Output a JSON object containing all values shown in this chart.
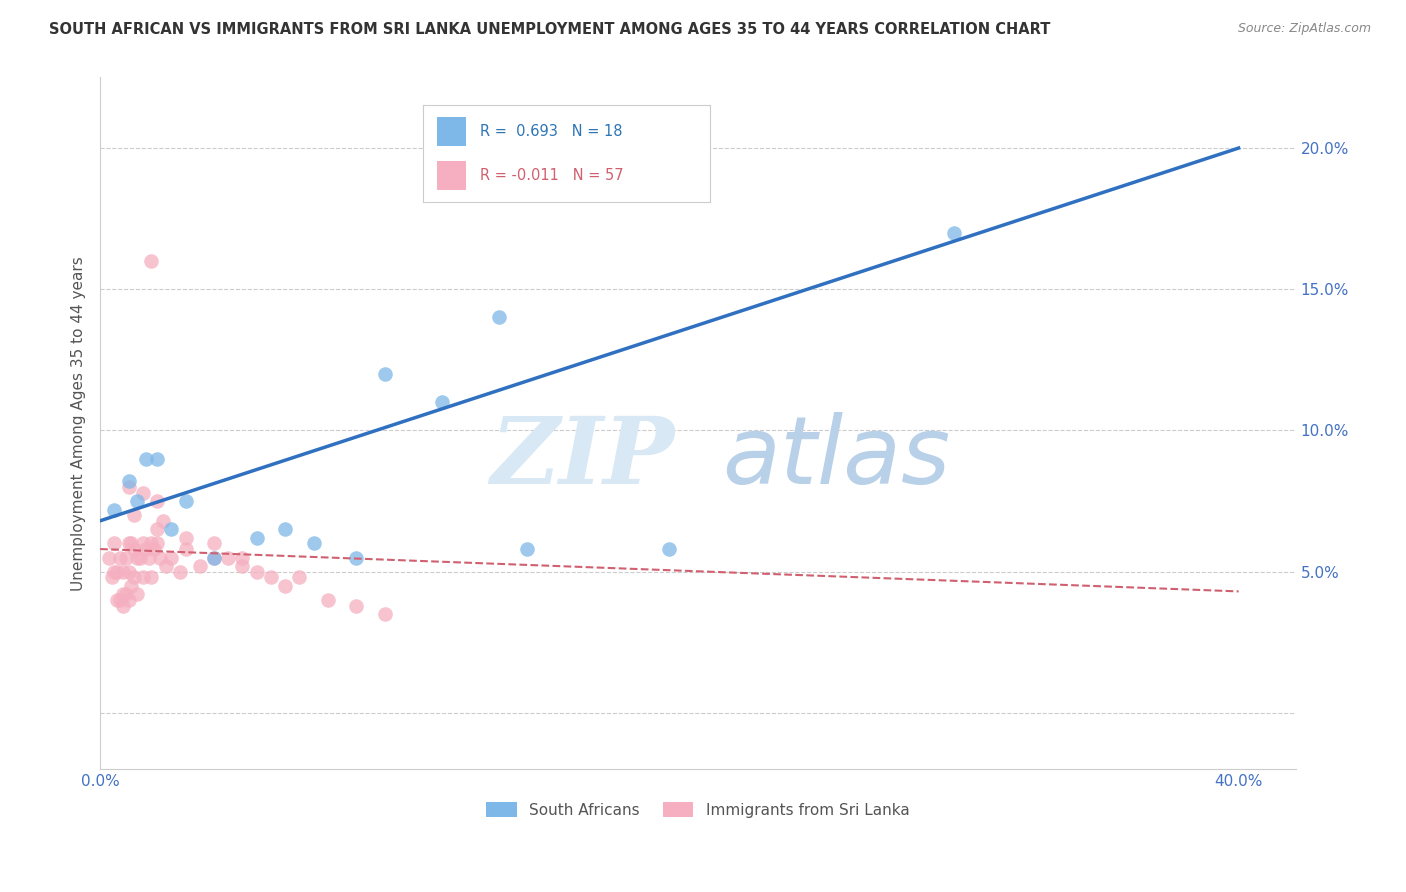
{
  "title": "SOUTH AFRICAN VS IMMIGRANTS FROM SRI LANKA UNEMPLOYMENT AMONG AGES 35 TO 44 YEARS CORRELATION CHART",
  "source": "Source: ZipAtlas.com",
  "ylabel": "Unemployment Among Ages 35 to 44 years",
  "xlim": [
    0.0,
    0.42
  ],
  "ylim": [
    -0.02,
    0.225
  ],
  "yticks": [
    0.0,
    0.05,
    0.1,
    0.15,
    0.2
  ],
  "ytick_labels": [
    "",
    "5.0%",
    "10.0%",
    "15.0%",
    "20.0%"
  ],
  "blue_scatter": {
    "x": [
      0.005,
      0.01,
      0.013,
      0.016,
      0.02,
      0.025,
      0.03,
      0.04,
      0.055,
      0.065,
      0.075,
      0.09,
      0.1,
      0.12,
      0.14,
      0.15,
      0.2,
      0.3
    ],
    "y": [
      0.072,
      0.082,
      0.075,
      0.09,
      0.09,
      0.065,
      0.075,
      0.055,
      0.062,
      0.065,
      0.06,
      0.055,
      0.12,
      0.11,
      0.14,
      0.058,
      0.058,
      0.17
    ]
  },
  "pink_scatter": {
    "x": [
      0.003,
      0.004,
      0.005,
      0.005,
      0.006,
      0.006,
      0.007,
      0.007,
      0.008,
      0.008,
      0.008,
      0.009,
      0.009,
      0.01,
      0.01,
      0.01,
      0.011,
      0.011,
      0.012,
      0.012,
      0.013,
      0.013,
      0.014,
      0.015,
      0.015,
      0.016,
      0.017,
      0.018,
      0.018,
      0.019,
      0.02,
      0.021,
      0.023,
      0.025,
      0.028,
      0.03,
      0.035,
      0.04,
      0.045,
      0.05,
      0.055,
      0.06,
      0.065,
      0.07,
      0.08,
      0.09,
      0.1,
      0.012,
      0.02,
      0.04,
      0.02,
      0.03,
      0.05,
      0.01,
      0.015,
      0.022,
      0.018
    ],
    "y": [
      0.055,
      0.048,
      0.05,
      0.06,
      0.05,
      0.04,
      0.055,
      0.04,
      0.05,
      0.042,
      0.038,
      0.055,
      0.042,
      0.06,
      0.05,
      0.04,
      0.06,
      0.045,
      0.058,
      0.048,
      0.055,
      0.042,
      0.055,
      0.06,
      0.048,
      0.058,
      0.055,
      0.06,
      0.048,
      0.058,
      0.06,
      0.055,
      0.052,
      0.055,
      0.05,
      0.058,
      0.052,
      0.06,
      0.055,
      0.052,
      0.05,
      0.048,
      0.045,
      0.048,
      0.04,
      0.038,
      0.035,
      0.07,
      0.065,
      0.055,
      0.075,
      0.062,
      0.055,
      0.08,
      0.078,
      0.068,
      0.16
    ]
  },
  "blue_line": {
    "x": [
      0.0,
      0.4
    ],
    "y": [
      0.068,
      0.2
    ]
  },
  "pink_line": {
    "x": [
      0.0,
      0.4
    ],
    "y": [
      0.058,
      0.043
    ]
  },
  "blue_color": "#7eb8e8",
  "pink_color": "#f5afc0",
  "blue_line_color": "#3070c0",
  "pink_line_color": "#d06070",
  "legend_r_blue": "R =  0.693",
  "legend_n_blue": "N = 18",
  "legend_r_pink": "R = -0.011",
  "legend_n_pink": "N = 57",
  "legend_label_blue": "South Africans",
  "legend_label_pink": "Immigrants from Sri Lanka",
  "watermark_zip": "ZIP",
  "watermark_atlas": "atlas",
  "background_color": "#ffffff",
  "grid_color": "#cccccc"
}
